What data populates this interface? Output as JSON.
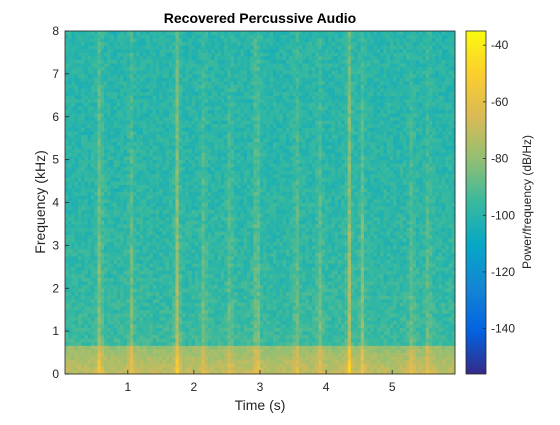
{
  "chart_data": {
    "type": "heatmap",
    "title": "Recovered Percussive Audio",
    "xlabel": "Time (s)",
    "ylabel": "Frequency (kHz)",
    "x_ticks": [
      1,
      2,
      3,
      4,
      5
    ],
    "x_tick_labels": [
      "1",
      "2",
      "3",
      "4",
      "5"
    ],
    "xlim": [
      0.05,
      5.95
    ],
    "y_ticks": [
      0,
      1,
      2,
      3,
      4,
      5,
      6,
      7,
      8
    ],
    "y_tick_labels": [
      "0",
      "1",
      "2",
      "3",
      "4",
      "5",
      "6",
      "7",
      "8"
    ],
    "ylim": [
      0,
      8
    ],
    "colorbar": {
      "label": "Power/frequency (dB/Hz)",
      "ticks": [
        -140,
        -120,
        -100,
        -80,
        -60,
        -40
      ],
      "tick_labels": [
        "-140",
        "-120",
        "-100",
        "-80",
        "-60",
        "-40"
      ],
      "range": [
        -156,
        -35
      ],
      "colormap": "parula"
    },
    "percussive_onsets_s": [
      0.58,
      1.05,
      1.75,
      2.15,
      2.55,
      2.95,
      3.55,
      3.9,
      4.35,
      4.55,
      5.3,
      5.55
    ],
    "strong_onsets_s": [
      0.58,
      1.75,
      2.95,
      4.35
    ],
    "background_level_db": -100,
    "low_frequency_band_db": -70
  },
  "colors": {
    "parula_low": "#352a87",
    "parula_mid": "#1fa2d8",
    "parula_green": "#5ec962",
    "parula_high": "#f9fb0e"
  }
}
